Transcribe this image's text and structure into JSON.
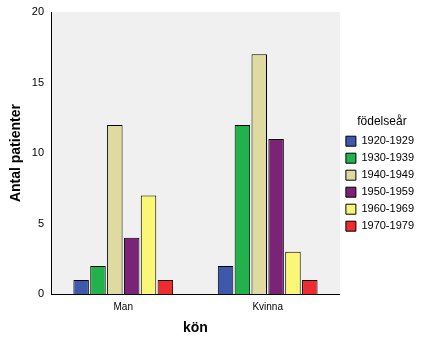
{
  "chart_data": {
    "type": "bar",
    "x_label": "kön",
    "y_label": "Antal patienter",
    "legend_title": "födelseår",
    "categories": [
      "Man",
      "Kvinna"
    ],
    "series": [
      {
        "name": "1920-1929",
        "color": "#3e58ac",
        "values": [
          1,
          2
        ]
      },
      {
        "name": "1930-1939",
        "color": "#21b24b",
        "values": [
          2,
          12
        ]
      },
      {
        "name": "1940-1949",
        "color": "#dedaa0",
        "values": [
          12,
          17
        ]
      },
      {
        "name": "1950-1959",
        "color": "#7b2377",
        "values": [
          4,
          11
        ]
      },
      {
        "name": "1960-1969",
        "color": "#fbf776",
        "values": [
          7,
          3
        ]
      },
      {
        "name": "1970-1979",
        "color": "#ee2b2f",
        "values": [
          1,
          1
        ]
      }
    ],
    "ylim": [
      0,
      20
    ],
    "yticks": [
      0,
      5,
      10,
      15,
      20
    ],
    "grid": false,
    "legend": "right"
  }
}
